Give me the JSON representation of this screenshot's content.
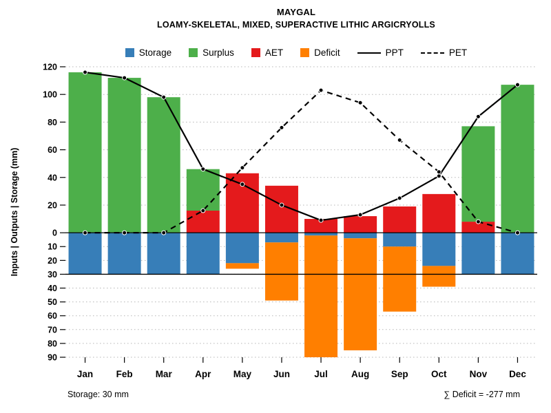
{
  "header": {
    "title": "MAYGAL",
    "subtitle": "LOAMY-SKELETAL, MIXED, SUPERACTIVE LITHIC ARGICRYOLLS"
  },
  "footer": {
    "storage_note": "Storage: 30 mm",
    "deficit_note": "∑ Deficit = -277 mm"
  },
  "chart_data": {
    "type": "bar",
    "title": "MAYGAL",
    "subtitle": "LOAMY-SKELETAL, MIXED, SUPERACTIVE LITHIC ARGICRYOLLS",
    "xlabel": "",
    "ylabel": "Inputs | Outputs | Storage   (mm)",
    "categories": [
      "Jan",
      "Feb",
      "Mar",
      "Apr",
      "May",
      "Jun",
      "Jul",
      "Aug",
      "Sep",
      "Oct",
      "Nov",
      "Dec"
    ],
    "ylim": [
      -90,
      120
    ],
    "grid": true,
    "legend_position": "top",
    "storage_capacity_mm": 30,
    "deficit_sum_mm": -277,
    "series": [
      {
        "name": "Storage",
        "type": "bar-below",
        "color": "#377EB8",
        "values": [
          30,
          30,
          30,
          30,
          22,
          7,
          2,
          4,
          10,
          24,
          30,
          30
        ]
      },
      {
        "name": "Deficit",
        "type": "bar-below",
        "color": "#FF7F00",
        "values": [
          0,
          0,
          0,
          0,
          4,
          42,
          88,
          81,
          47,
          15,
          0,
          0
        ]
      },
      {
        "name": "AET",
        "type": "bar-above",
        "color": "#E41A1C",
        "values": [
          0,
          0,
          0,
          16,
          43,
          34,
          10,
          12,
          19,
          28,
          8,
          0
        ]
      },
      {
        "name": "Surplus",
        "type": "bar-above",
        "color": "#4DAF4A",
        "values": [
          116,
          112,
          98,
          30,
          0,
          0,
          0,
          0,
          0,
          0,
          69,
          107
        ]
      },
      {
        "name": "PPT",
        "type": "line-solid",
        "color": "#000000",
        "values": [
          116,
          112,
          98,
          46,
          35,
          20,
          9,
          13,
          25,
          41,
          84,
          107
        ]
      },
      {
        "name": "PET",
        "type": "line-dashed",
        "color": "#000000",
        "values": [
          0,
          0,
          0,
          16,
          47,
          76,
          103,
          94,
          67,
          44,
          8,
          0
        ]
      }
    ],
    "yticks": [
      {
        "v": 120,
        "label": "120"
      },
      {
        "v": 100,
        "label": "100"
      },
      {
        "v": 80,
        "label": "80"
      },
      {
        "v": 60,
        "label": "60"
      },
      {
        "v": 40,
        "label": "40"
      },
      {
        "v": 20,
        "label": "20"
      },
      {
        "v": 0,
        "label": "0"
      },
      {
        "v": -10,
        "label": "10"
      },
      {
        "v": -20,
        "label": "20"
      },
      {
        "v": -30,
        "label": "30"
      },
      {
        "v": -40,
        "label": "40"
      },
      {
        "v": -50,
        "label": "50"
      },
      {
        "v": -60,
        "label": "60"
      },
      {
        "v": -70,
        "label": "70"
      },
      {
        "v": -80,
        "label": "80"
      },
      {
        "v": -90,
        "label": "90"
      }
    ],
    "legend": [
      {
        "label": "Storage",
        "series": "Storage",
        "type": "square"
      },
      {
        "label": "Surplus",
        "series": "Surplus",
        "type": "square"
      },
      {
        "label": "AET",
        "series": "AET",
        "type": "square"
      },
      {
        "label": "Deficit",
        "series": "Deficit",
        "type": "square"
      },
      {
        "label": "PPT",
        "series": "PPT",
        "type": "solid-line"
      },
      {
        "label": "PET",
        "series": "PET",
        "type": "dashed-line"
      }
    ]
  }
}
